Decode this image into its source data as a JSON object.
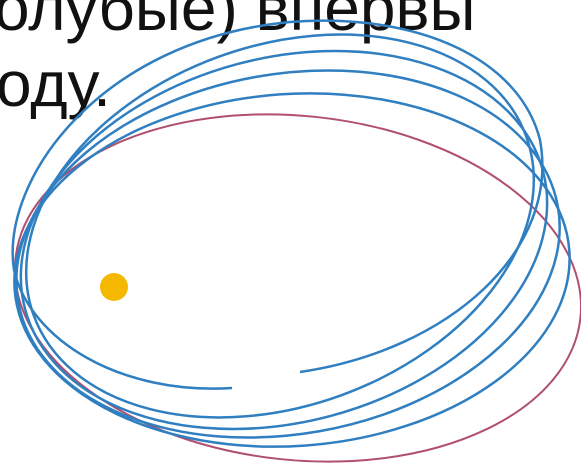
{
  "slide": {
    "text_lines": [
      "олубые) впервы",
      "оду."
    ]
  }
}
